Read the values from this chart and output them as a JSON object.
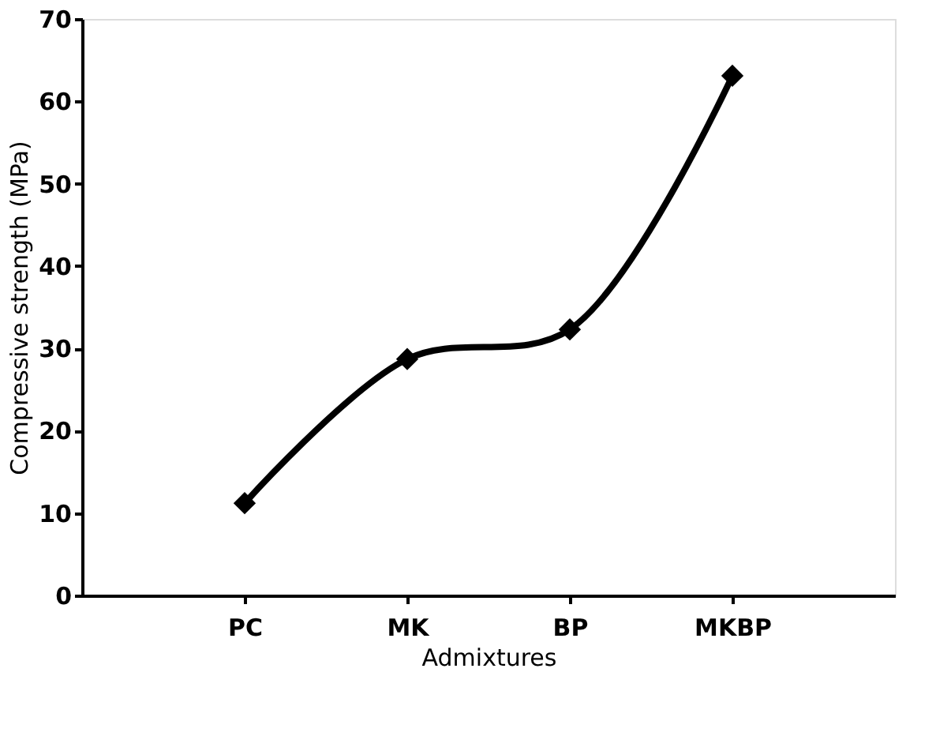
{
  "chart_data": {
    "type": "line",
    "xlabel": "Admixtures",
    "ylabel": "Compressive strength (MPa)",
    "categories": [
      "PC",
      "MK",
      "BP",
      "MKBP"
    ],
    "series": [
      {
        "color": "#000000",
        "values": [
          11.2,
          28.7,
          32.3,
          63.1
        ]
      }
    ],
    "ylim": [
      0,
      70
    ],
    "yticks": [
      0,
      10,
      20,
      30,
      40,
      50,
      60,
      70
    ],
    "grid": false,
    "legend": false,
    "marker": "diamond",
    "line_style": "solid"
  }
}
